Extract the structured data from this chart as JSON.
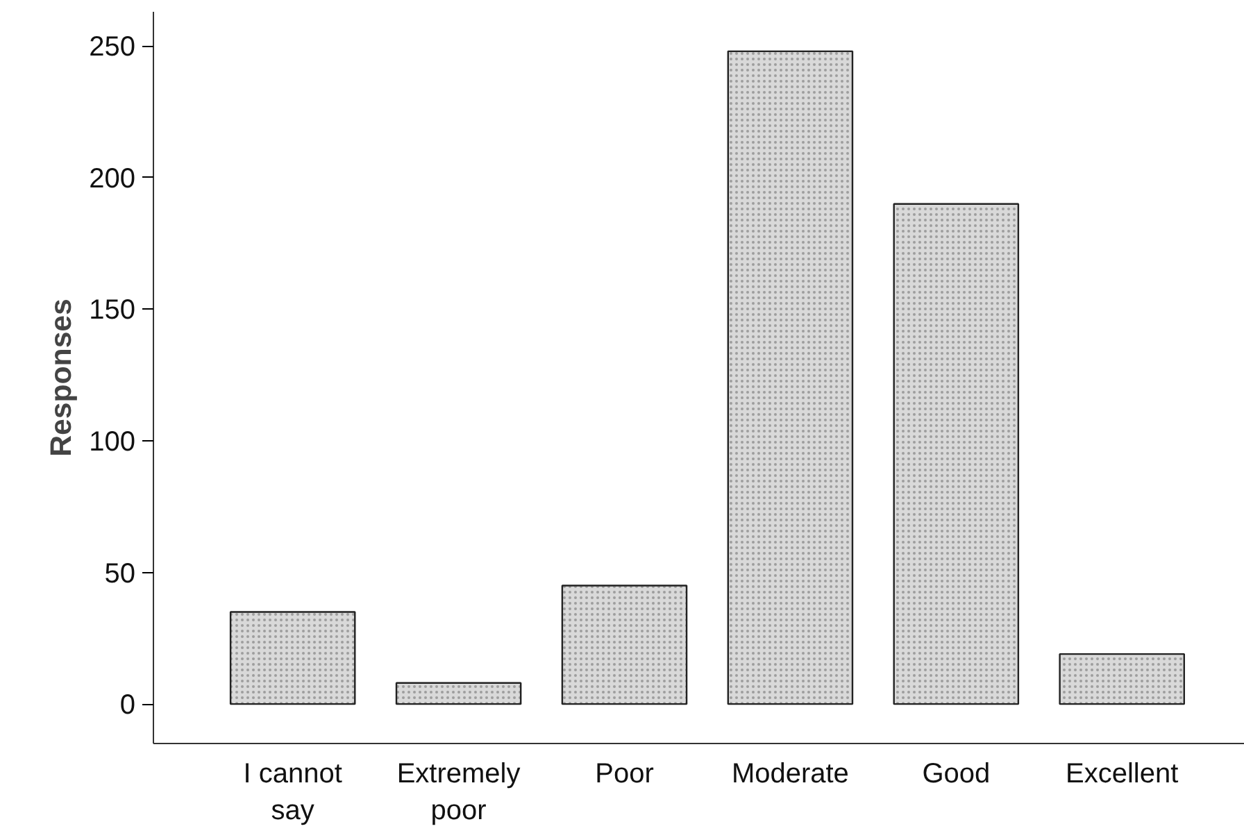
{
  "chart_data": {
    "type": "bar",
    "ylabel": "Responses",
    "categories": [
      "I cannot say",
      "Extremely poor",
      "Poor",
      "Moderate",
      "Good",
      "Excellent"
    ],
    "values": [
      35,
      8,
      45,
      248,
      190,
      19
    ],
    "color": "#d9d9d9",
    "ylim": [
      -15,
      263
    ],
    "yticks": [
      0,
      50,
      100,
      150,
      200,
      250
    ],
    "grid": false
  }
}
